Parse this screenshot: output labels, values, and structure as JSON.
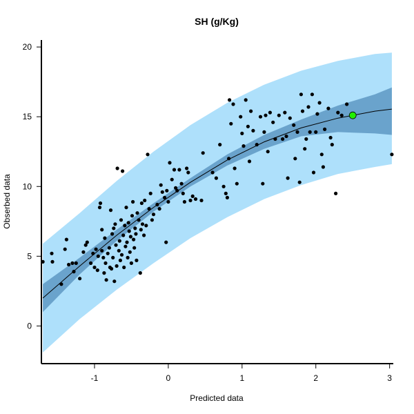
{
  "chart_data": {
    "type": "scatter",
    "title": "SH (g/Kg)",
    "xlabel": "Predicted data",
    "ylabel": "Obserbed data",
    "xlim": [
      -1.72,
      3.05
    ],
    "ylim": [
      -2.7,
      20.5
    ],
    "x_ticks": [
      -1,
      0,
      1,
      2,
      3
    ],
    "y_ticks": [
      0,
      5,
      10,
      15,
      20
    ],
    "grid": false,
    "colors": {
      "prediction_band": "#aee0fb",
      "confidence_band": "#6aa3cc",
      "fit_line": "#000000",
      "points": "#000000",
      "highlight_point": "#22ee00"
    },
    "fit_curve": {
      "x": [
        -1.7,
        -1.2,
        -0.7,
        -0.2,
        0.3,
        0.8,
        1.3,
        1.8,
        2.3,
        2.8,
        3.03
      ],
      "y": [
        2.0,
        4.3,
        6.5,
        8.5,
        10.3,
        11.9,
        13.2,
        14.2,
        14.9,
        15.4,
        15.55
      ]
    },
    "confidence_band": {
      "x": [
        -1.7,
        -1.2,
        -0.7,
        -0.2,
        0.3,
        0.8,
        1.3,
        1.8,
        2.3,
        2.8,
        3.03
      ],
      "lower": [
        1.0,
        3.7,
        6.1,
        8.2,
        10.0,
        11.5,
        12.7,
        13.6,
        13.9,
        13.8,
        13.7
      ],
      "upper": [
        3.0,
        4.9,
        6.9,
        8.8,
        10.6,
        12.3,
        13.7,
        14.8,
        15.8,
        16.6,
        17.1
      ]
    },
    "prediction_band": {
      "x": [
        -1.7,
        -1.2,
        -0.7,
        -0.2,
        0.3,
        0.8,
        1.3,
        1.8,
        2.3,
        2.8,
        3.03
      ],
      "lower": [
        -1.9,
        0.5,
        2.6,
        4.5,
        6.3,
        7.8,
        9.1,
        10.1,
        10.9,
        11.4,
        11.6
      ],
      "upper": [
        5.9,
        8.1,
        10.4,
        12.5,
        14.4,
        16.0,
        17.3,
        18.3,
        19.0,
        19.5,
        19.6
      ]
    },
    "highlight_point": {
      "x": 2.5,
      "y": 15.1
    },
    "points": [
      {
        "x": -1.7,
        "y": 4.6
      },
      {
        "x": -1.57,
        "y": 4.6
      },
      {
        "x": -1.58,
        "y": 5.2
      },
      {
        "x": -1.45,
        "y": 3.0
      },
      {
        "x": -1.4,
        "y": 5.5
      },
      {
        "x": -1.38,
        "y": 6.2
      },
      {
        "x": -1.35,
        "y": 4.4
      },
      {
        "x": -1.3,
        "y": 4.5
      },
      {
        "x": -1.28,
        "y": 3.9
      },
      {
        "x": -1.25,
        "y": 4.5
      },
      {
        "x": -1.2,
        "y": 3.4
      },
      {
        "x": -1.15,
        "y": 5.3
      },
      {
        "x": -1.12,
        "y": 5.8
      },
      {
        "x": -1.1,
        "y": 6.0
      },
      {
        "x": -1.05,
        "y": 4.5
      },
      {
        "x": -1.02,
        "y": 5.2
      },
      {
        "x": -1.0,
        "y": 4.2
      },
      {
        "x": -0.98,
        "y": 5.5
      },
      {
        "x": -0.96,
        "y": 4.0
      },
      {
        "x": -0.95,
        "y": 5.0
      },
      {
        "x": -0.93,
        "y": 8.5
      },
      {
        "x": -0.92,
        "y": 8.8
      },
      {
        "x": -0.9,
        "y": 6.9
      },
      {
        "x": -0.9,
        "y": 5.4
      },
      {
        "x": -0.88,
        "y": 4.9
      },
      {
        "x": -0.87,
        "y": 3.8
      },
      {
        "x": -0.86,
        "y": 6.3
      },
      {
        "x": -0.85,
        "y": 4.5
      },
      {
        "x": -0.84,
        "y": 3.3
      },
      {
        "x": -0.82,
        "y": 5.2
      },
      {
        "x": -0.8,
        "y": 5.6
      },
      {
        "x": -0.79,
        "y": 4.2
      },
      {
        "x": -0.78,
        "y": 8.3
      },
      {
        "x": -0.77,
        "y": 4.1
      },
      {
        "x": -0.76,
        "y": 6.6
      },
      {
        "x": -0.75,
        "y": 4.9
      },
      {
        "x": -0.74,
        "y": 7.0
      },
      {
        "x": -0.73,
        "y": 3.2
      },
      {
        "x": -0.72,
        "y": 7.3
      },
      {
        "x": -0.71,
        "y": 5.8
      },
      {
        "x": -0.7,
        "y": 4.3
      },
      {
        "x": -0.69,
        "y": 11.3
      },
      {
        "x": -0.67,
        "y": 5.4
      },
      {
        "x": -0.66,
        "y": 6.1
      },
      {
        "x": -0.65,
        "y": 4.7
      },
      {
        "x": -0.64,
        "y": 7.6
      },
      {
        "x": -0.63,
        "y": 5.1
      },
      {
        "x": -0.62,
        "y": 11.1
      },
      {
        "x": -0.61,
        "y": 6.5
      },
      {
        "x": -0.6,
        "y": 4.2
      },
      {
        "x": -0.59,
        "y": 7.2
      },
      {
        "x": -0.58,
        "y": 5.7
      },
      {
        "x": -0.57,
        "y": 8.5
      },
      {
        "x": -0.56,
        "y": 6.0
      },
      {
        "x": -0.55,
        "y": 4.9
      },
      {
        "x": -0.54,
        "y": 7.4
      },
      {
        "x": -0.53,
        "y": 6.8
      },
      {
        "x": -0.52,
        "y": 5.3
      },
      {
        "x": -0.51,
        "y": 6.4
      },
      {
        "x": -0.5,
        "y": 4.5
      },
      {
        "x": -0.49,
        "y": 7.9
      },
      {
        "x": -0.48,
        "y": 8.9
      },
      {
        "x": -0.47,
        "y": 6.2
      },
      {
        "x": -0.46,
        "y": 5.6
      },
      {
        "x": -0.45,
        "y": 7.0
      },
      {
        "x": -0.44,
        "y": 6.6
      },
      {
        "x": -0.43,
        "y": 4.7
      },
      {
        "x": -0.42,
        "y": 8.1
      },
      {
        "x": -0.4,
        "y": 7.6
      },
      {
        "x": -0.38,
        "y": 3.8
      },
      {
        "x": -0.37,
        "y": 6.9
      },
      {
        "x": -0.36,
        "y": 8.8
      },
      {
        "x": -0.35,
        "y": 7.3
      },
      {
        "x": -0.33,
        "y": 6.5
      },
      {
        "x": -0.32,
        "y": 9.0
      },
      {
        "x": -0.3,
        "y": 7.2
      },
      {
        "x": -0.28,
        "y": 12.3
      },
      {
        "x": -0.26,
        "y": 8.4
      },
      {
        "x": -0.24,
        "y": 9.5
      },
      {
        "x": -0.22,
        "y": 7.6
      },
      {
        "x": -0.2,
        "y": 8.0
      },
      {
        "x": -0.15,
        "y": 8.7
      },
      {
        "x": -0.12,
        "y": 8.4
      },
      {
        "x": -0.1,
        "y": 10.1
      },
      {
        "x": -0.08,
        "y": 9.6
      },
      {
        "x": -0.05,
        "y": 9.2
      },
      {
        "x": -0.03,
        "y": 6.0
      },
      {
        "x": -0.02,
        "y": 9.7
      },
      {
        "x": 0.0,
        "y": 8.9
      },
      {
        "x": 0.02,
        "y": 11.7
      },
      {
        "x": 0.05,
        "y": 10.5
      },
      {
        "x": 0.08,
        "y": 11.2
      },
      {
        "x": 0.1,
        "y": 9.9
      },
      {
        "x": 0.12,
        "y": 9.7
      },
      {
        "x": 0.15,
        "y": 11.2
      },
      {
        "x": 0.18,
        "y": 10.2
      },
      {
        "x": 0.2,
        "y": 9.5
      },
      {
        "x": 0.22,
        "y": 8.9
      },
      {
        "x": 0.25,
        "y": 11.3
      },
      {
        "x": 0.27,
        "y": 11.0
      },
      {
        "x": 0.3,
        "y": 9.0
      },
      {
        "x": 0.33,
        "y": 9.3
      },
      {
        "x": 0.37,
        "y": 9.1
      },
      {
        "x": 0.45,
        "y": 9.0
      },
      {
        "x": 0.47,
        "y": 12.4
      },
      {
        "x": 0.6,
        "y": 11.0
      },
      {
        "x": 0.65,
        "y": 10.6
      },
      {
        "x": 0.7,
        "y": 13.0
      },
      {
        "x": 0.75,
        "y": 10.0
      },
      {
        "x": 0.78,
        "y": 9.5
      },
      {
        "x": 0.8,
        "y": 9.2
      },
      {
        "x": 0.82,
        "y": 12.0
      },
      {
        "x": 0.83,
        "y": 16.2
      },
      {
        "x": 0.85,
        "y": 14.5
      },
      {
        "x": 0.88,
        "y": 15.9
      },
      {
        "x": 0.9,
        "y": 11.3
      },
      {
        "x": 0.93,
        "y": 10.2
      },
      {
        "x": 0.98,
        "y": 15.0
      },
      {
        "x": 1.0,
        "y": 13.8
      },
      {
        "x": 1.02,
        "y": 12.9
      },
      {
        "x": 1.05,
        "y": 16.2
      },
      {
        "x": 1.08,
        "y": 14.3
      },
      {
        "x": 1.1,
        "y": 11.8
      },
      {
        "x": 1.12,
        "y": 15.4
      },
      {
        "x": 1.15,
        "y": 14.0
      },
      {
        "x": 1.2,
        "y": 13.0
      },
      {
        "x": 1.25,
        "y": 15.0
      },
      {
        "x": 1.28,
        "y": 10.2
      },
      {
        "x": 1.3,
        "y": 13.9
      },
      {
        "x": 1.32,
        "y": 15.1
      },
      {
        "x": 1.35,
        "y": 12.5
      },
      {
        "x": 1.38,
        "y": 15.3
      },
      {
        "x": 1.42,
        "y": 14.6
      },
      {
        "x": 1.45,
        "y": 13.4
      },
      {
        "x": 1.5,
        "y": 15.1
      },
      {
        "x": 1.55,
        "y": 13.4
      },
      {
        "x": 1.58,
        "y": 15.3
      },
      {
        "x": 1.6,
        "y": 13.6
      },
      {
        "x": 1.62,
        "y": 10.6
      },
      {
        "x": 1.65,
        "y": 14.9
      },
      {
        "x": 1.7,
        "y": 14.4
      },
      {
        "x": 1.72,
        "y": 12.0
      },
      {
        "x": 1.75,
        "y": 13.9
      },
      {
        "x": 1.78,
        "y": 10.3
      },
      {
        "x": 1.8,
        "y": 16.6
      },
      {
        "x": 1.82,
        "y": 15.4
      },
      {
        "x": 1.85,
        "y": 12.7
      },
      {
        "x": 1.87,
        "y": 13.4
      },
      {
        "x": 1.9,
        "y": 15.7
      },
      {
        "x": 1.92,
        "y": 13.9
      },
      {
        "x": 1.95,
        "y": 16.6
      },
      {
        "x": 1.97,
        "y": 11.0
      },
      {
        "x": 2.0,
        "y": 13.9
      },
      {
        "x": 2.02,
        "y": 15.2
      },
      {
        "x": 2.05,
        "y": 16.0
      },
      {
        "x": 2.08,
        "y": 12.3
      },
      {
        "x": 2.1,
        "y": 11.4
      },
      {
        "x": 2.12,
        "y": 14.1
      },
      {
        "x": 2.17,
        "y": 15.6
      },
      {
        "x": 2.2,
        "y": 13.5
      },
      {
        "x": 2.22,
        "y": 13.0
      },
      {
        "x": 2.27,
        "y": 9.5
      },
      {
        "x": 2.3,
        "y": 15.3
      },
      {
        "x": 2.35,
        "y": 15.1
      },
      {
        "x": 2.42,
        "y": 15.9
      },
      {
        "x": 3.03,
        "y": 12.3
      }
    ]
  }
}
